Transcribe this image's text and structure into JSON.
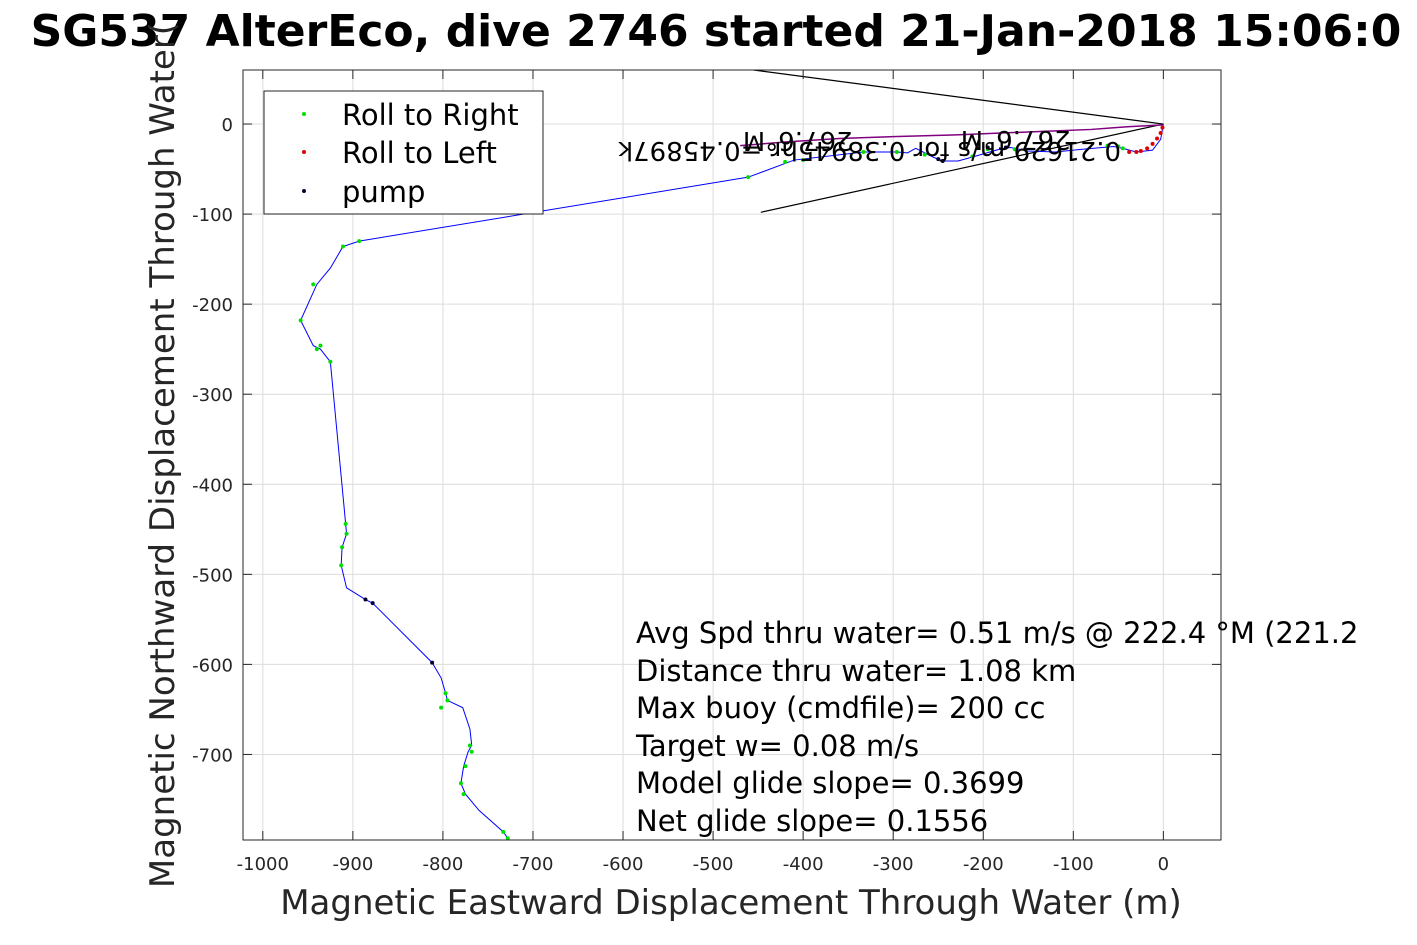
{
  "chart_data": {
    "type": "scatter",
    "title": "SG537 AlterEco, dive 2746 started 21-Jan-2018 15:06:0",
    "xlabel": "Magnetic Eastward Displacement Through Water (m)",
    "ylabel": "Magnetic Northward Displacement Through Water(",
    "xlim": [
      -1022,
      64
    ],
    "ylim": [
      -795,
      60
    ],
    "xticks": [
      -1000,
      -900,
      -800,
      -700,
      -600,
      -500,
      -400,
      -300,
      -200,
      -100,
      0
    ],
    "yticks": [
      0,
      -100,
      -200,
      -300,
      -400,
      -500,
      -600,
      -700
    ],
    "grid": true,
    "legend_placement": "top-left",
    "colors": {
      "track": "#0000ff",
      "roll_right": "#00e000",
      "roll_left": "#e00000",
      "pump": "#000033",
      "surface_track": "#800080",
      "grid": "#dcdcdc",
      "axes": "#262626"
    },
    "legend": [
      {
        "label": "Roll to Right",
        "color": "#00e000"
      },
      {
        "label": "Roll to Left",
        "color": "#e00000"
      },
      {
        "label": "pump",
        "color": "#000033"
      }
    ],
    "track": {
      "x": [
        -728,
        -733,
        -760,
        -775,
        -780,
        -777,
        -772,
        -768,
        -770,
        -778,
        -795,
        -797,
        -802,
        -812,
        -878,
        -886,
        -907,
        -913,
        -912,
        -907,
        -908,
        -925,
        -936,
        -944,
        -958,
        -940,
        -925,
        -911,
        -893,
        -461,
        -410,
        -333,
        -296,
        -284,
        -275,
        -255,
        -245,
        -228,
        -210,
        -182,
        -170,
        -150,
        -120,
        -90,
        -55,
        -45,
        -30,
        -12,
        -3,
        0
      ],
      "y": [
        -793,
        -786,
        -762,
        -744,
        -732,
        -713,
        -697,
        -690,
        -672,
        -648,
        -640,
        -632,
        -615,
        -598,
        -532,
        -528,
        -515,
        -490,
        -470,
        -455,
        -444,
        -264,
        -250,
        -246,
        -218,
        -178,
        -160,
        -136,
        -130,
        -59,
        -40,
        -31,
        -31,
        -32,
        -27,
        -37,
        -41,
        -41,
        -36,
        -28,
        -26,
        -30,
        -31,
        -28,
        -25,
        -27,
        -31,
        -29,
        -17,
        0
      ]
    },
    "surface_track": {
      "x": [
        0,
        -40,
        -80,
        -130,
        -180,
        -230,
        -300,
        -360,
        -420,
        -470
      ],
      "y": [
        -1,
        -3,
        -6,
        -8,
        -10,
        -12,
        -14,
        -16,
        -20,
        -24
      ]
    },
    "roll_right_points": {
      "x": [
        -728,
        -733,
        -768,
        -770,
        -775,
        -780,
        -777,
        -795,
        -797,
        -802,
        -907,
        -908,
        -912,
        -913,
        -925,
        -936,
        -940,
        -944,
        -958,
        -911,
        -893,
        -461,
        -420,
        -400,
        -333,
        -296,
        -265,
        -212,
        -195,
        -165,
        -62,
        -50,
        -45
      ],
      "y": [
        -793,
        -786,
        -697,
        -690,
        -713,
        -732,
        -744,
        -640,
        -632,
        -648,
        -455,
        -444,
        -470,
        -490,
        -264,
        -246,
        -250,
        -178,
        -218,
        -136,
        -130,
        -59,
        -42,
        -40,
        -31,
        -31,
        -34,
        -36,
        -28,
        -28,
        -24,
        -25,
        -27
      ]
    },
    "roll_left_points": {
      "x": [
        -38,
        -30,
        -25,
        -18,
        -12,
        -7,
        -3,
        -1
      ],
      "y": [
        -31,
        -31,
        -30,
        -27,
        -22,
        -16,
        -10,
        -4
      ]
    },
    "pump_points": {
      "x": [
        -812,
        -878,
        -886,
        -245,
        -250,
        -195,
        -175
      ],
      "y": [
        -598,
        -532,
        -528,
        -41,
        -39,
        -26,
        -26
      ]
    },
    "current_line_pairs": [
      {
        "from": [
          0,
          0
        ],
        "to": [
          -455,
          60
        ]
      },
      {
        "from": [
          0,
          0
        ],
        "to": [
          -447,
          -98
        ]
      }
    ],
    "upside_down_labels": [
      {
        "text": "267.6°M",
        "at": [
          -103,
          -8
        ],
        "rotate": 180
      },
      {
        "text": "0.21629 m/s for 0.38945hr =0.45897k",
        "at": [
          -47,
          -20
        ],
        "rotate": 180
      },
      {
        "text": "267.6°M",
        "at": [
          -345,
          -9
        ],
        "rotate": 180
      }
    ],
    "stats": [
      "Avg Spd thru water=  0.51 m/s @ 222.4 °M (221.2",
      "Distance thru water=  1.08 km",
      "Max buoy (cmdfile)= 200 cc",
      "Target w= 0.08 m/s",
      "Model glide slope= 0.3699",
      "Net glide slope= 0.1556"
    ]
  }
}
